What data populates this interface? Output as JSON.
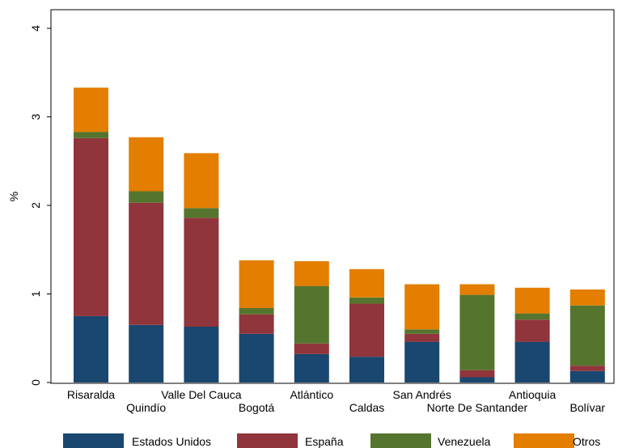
{
  "chart_data": {
    "type": "bar",
    "stacked": true,
    "ylabel": "%",
    "ylim": [
      0,
      4
    ],
    "yticks": [
      0,
      1,
      2,
      3,
      4
    ],
    "grid": false,
    "legend_position": "bottom",
    "categories": [
      "Risaralda",
      "Quindío",
      "Valle Del Cauca",
      "Bogotá",
      "Atlántico",
      "Caldas",
      "San Andrés",
      "Norte De Santander",
      "Antioquia",
      "Bolívar"
    ],
    "series": [
      {
        "name": "Estados Unidos",
        "color": "#1a476f",
        "values": [
          0.75,
          0.65,
          0.63,
          0.55,
          0.32,
          0.29,
          0.46,
          0.06,
          0.46,
          0.13
        ]
      },
      {
        "name": "España",
        "color": "#90353b",
        "values": [
          2.01,
          1.38,
          1.23,
          0.22,
          0.12,
          0.6,
          0.09,
          0.08,
          0.25,
          0.06
        ]
      },
      {
        "name": "Venezuela",
        "color": "#55752f",
        "values": [
          0.07,
          0.13,
          0.11,
          0.07,
          0.65,
          0.07,
          0.05,
          0.85,
          0.07,
          0.68
        ]
      },
      {
        "name": "Otros",
        "color": "#e37e00",
        "values": [
          0.5,
          0.61,
          0.62,
          0.54,
          0.28,
          0.32,
          0.51,
          0.12,
          0.29,
          0.18
        ]
      }
    ]
  }
}
